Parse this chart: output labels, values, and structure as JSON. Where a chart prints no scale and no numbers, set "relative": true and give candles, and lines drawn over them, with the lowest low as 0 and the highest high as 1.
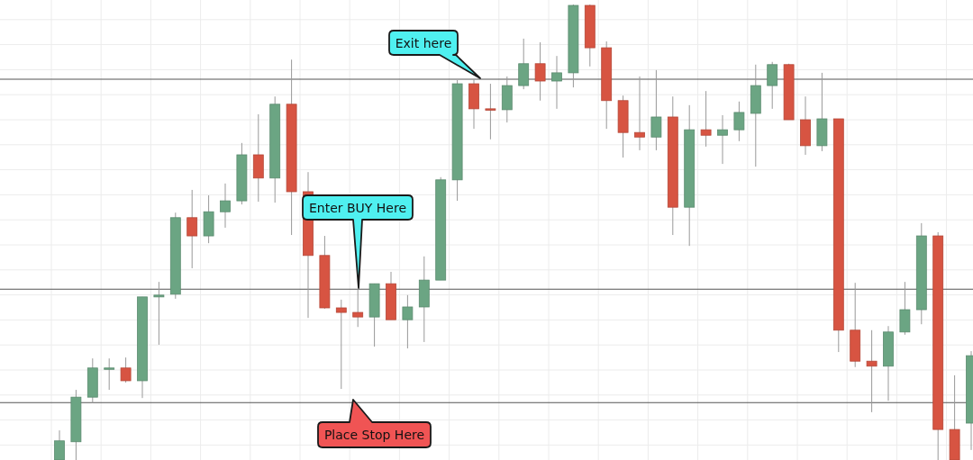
{
  "chart_data": {
    "type": "candlestick",
    "relative": true,
    "grid": true,
    "colors": [
      "#6ba583",
      "#6ba583",
      "#6ba583",
      "#6ba583",
      "#d75442",
      "#6ba583",
      "#6ba583",
      "#6ba583",
      "#d75442",
      "#6ba583",
      "#6ba583",
      "#6ba583",
      "#d75442",
      "#6ba583",
      "#d75442",
      "#d75442",
      "#d75442",
      "#d75442",
      "#d75442",
      "#6ba583",
      "#d75442",
      "#6ba583",
      "#6ba583",
      "#6ba583",
      "#6ba583",
      "#d75442",
      "#d75442",
      "#6ba583",
      "#6ba583",
      "#d75442",
      "#6ba583",
      "#6ba583",
      "#d75442",
      "#d75442",
      "#d75442",
      "#d75442",
      "#6ba583",
      "#d75442",
      "#6ba583",
      "#d75442",
      "#6ba583",
      "#6ba583",
      "#6ba583",
      "#6ba583",
      "#d75442",
      "#d75442",
      "#6ba583",
      "#d75442",
      "#d75442",
      "#d75442",
      "#6ba583",
      "#6ba583",
      "#6ba583",
      "#d75442",
      "#d75442",
      "#6ba583"
    ],
    "categories": [
      null,
      null,
      null,
      null,
      null,
      null,
      null,
      null,
      null,
      null,
      null,
      null,
      null,
      null,
      null,
      null,
      null,
      null,
      null,
      null,
      null,
      null,
      null,
      null,
      null,
      null,
      null,
      null,
      null,
      null,
      null,
      null,
      null,
      null,
      null,
      null,
      null,
      null,
      null,
      null,
      null,
      null,
      null,
      null,
      null,
      null,
      null,
      null,
      null,
      null,
      null,
      null,
      null,
      null,
      null,
      null
    ],
    "ohlc": [
      [
        0,
        0.065,
        0,
        0.042
      ],
      [
        0.04,
        0.154,
        0,
        0.138
      ],
      [
        0.138,
        0.223,
        0.125,
        0.202
      ],
      [
        0.202,
        0.223,
        0.154,
        0.202
      ],
      [
        0.202,
        0.225,
        0.17,
        0.174
      ],
      [
        0.174,
        0.358,
        0.136,
        0.358
      ],
      [
        0.358,
        0.391,
        0.253,
        0.362
      ],
      [
        0.364,
        0.543,
        0.354,
        0.532
      ],
      [
        0.532,
        0.593,
        0.421,
        0.492
      ],
      [
        0.492,
        0.581,
        0.476,
        0.545
      ],
      [
        0.545,
        0.607,
        0.51,
        0.569
      ],
      [
        0.569,
        0.696,
        0.561,
        0.67
      ],
      [
        0.67,
        0.759,
        0.567,
        0.619
      ],
      [
        0.619,
        0.798,
        0.565,
        0.781
      ],
      [
        0.781,
        0.879,
        0.494,
        0.589
      ],
      [
        0.589,
        0.632,
        0.312,
        0.449
      ],
      [
        0.449,
        0.492,
        0.332,
        0.334
      ],
      [
        0.334,
        0.352,
        0.156,
        0.324
      ],
      [
        0.324,
        0.374,
        0.292,
        0.314
      ],
      [
        0.314,
        0.387,
        0.249,
        0.387
      ],
      [
        0.387,
        0.413,
        0.308,
        0.308
      ],
      [
        0.308,
        0.362,
        0.245,
        0.336
      ],
      [
        0.336,
        0.447,
        0.259,
        0.395
      ],
      [
        0.395,
        0.621,
        0.395,
        0.615
      ],
      [
        0.615,
        0.834,
        0.569,
        0.826
      ],
      [
        0.826,
        0.836,
        0.727,
        0.771
      ],
      [
        0.771,
        0.826,
        0.704,
        0.769
      ],
      [
        0.769,
        0.842,
        0.741,
        0.822
      ],
      [
        0.822,
        0.925,
        0.814,
        0.87
      ],
      [
        0.87,
        0.917,
        0.789,
        0.832
      ],
      [
        0.832,
        0.887,
        0.771,
        0.85
      ],
      [
        0.85,
        1,
        0.818,
        0.998
      ],
      [
        0.998,
        1,
        0.864,
        0.905
      ],
      [
        0.905,
        0.919,
        0.727,
        0.789
      ],
      [
        0.789,
        0.8,
        0.664,
        0.719
      ],
      [
        0.719,
        0.842,
        0.68,
        0.709
      ],
      [
        0.709,
        0.856,
        0.68,
        0.753
      ],
      [
        0.753,
        0.798,
        0.494,
        0.555
      ],
      [
        0.555,
        0.779,
        0.47,
        0.725
      ],
      [
        0.725,
        0.81,
        0.688,
        0.713
      ],
      [
        0.713,
        0.757,
        0.65,
        0.725
      ],
      [
        0.725,
        0.787,
        0.7,
        0.763
      ],
      [
        0.761,
        0.868,
        0.644,
        0.822
      ],
      [
        0.822,
        0.874,
        0.771,
        0.868
      ],
      [
        0.868,
        0.87,
        0.747,
        0.747
      ],
      [
        0.747,
        0.798,
        0.67,
        0.69
      ],
      [
        0.69,
        0.85,
        0.678,
        0.749
      ],
      [
        0.749,
        0.749,
        0.237,
        0.285
      ],
      [
        0.285,
        0.389,
        0.204,
        0.217
      ],
      [
        0.217,
        0.285,
        0.105,
        0.206
      ],
      [
        0.206,
        0.294,
        0.13,
        0.281
      ],
      [
        0.281,
        0.391,
        0.275,
        0.33
      ],
      [
        0.33,
        0.52,
        0.298,
        0.492
      ],
      [
        0.492,
        0.5,
        0,
        0.067
      ],
      [
        0.067,
        0.186,
        0,
        0
      ],
      [
        0.081,
        0.239,
        0.022,
        0.229
      ]
    ],
    "ref_lines": [
      {
        "axis": "y",
        "value": 0.836,
        "color": "#555555"
      },
      {
        "axis": "y",
        "value": 0.375,
        "color": "#555555"
      },
      {
        "axis": "y",
        "value": 0.126,
        "color": "#555555"
      }
    ],
    "annotations": [
      "Exit here",
      "Enter BUY Here",
      "Place Stop Here"
    ]
  }
}
